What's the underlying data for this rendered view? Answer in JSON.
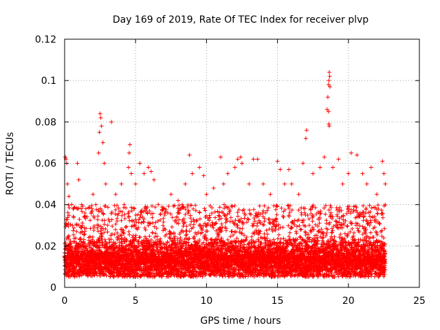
{
  "chart_data": {
    "type": "scatter",
    "title": "Day 169 of 2019, Rate Of TEC Index for receiver plvp",
    "xlabel": "GPS time / hours",
    "ylabel": "ROTI / TECUs",
    "xlim": [
      0,
      25
    ],
    "ylim": [
      0,
      0.12
    ],
    "xticks": [
      0,
      5,
      10,
      15,
      20,
      25
    ],
    "yticks": [
      0,
      0.02,
      0.04,
      0.06,
      0.08,
      0.1,
      0.12
    ],
    "xtick_labels": [
      "0",
      "5",
      "10",
      "15",
      "20",
      "25"
    ],
    "ytick_labels": [
      "0",
      "0.02",
      "0.04",
      "0.06",
      "0.08",
      "0.1",
      "0.12"
    ],
    "grid": true,
    "marker": "+",
    "color": "#ff0000",
    "series": [
      {
        "name": "ROTI",
        "points": [
          [
            0.05,
            0.063
          ],
          [
            0.1,
            0.062
          ],
          [
            0.15,
            0.06
          ],
          [
            0.2,
            0.05
          ],
          [
            0.3,
            0.044
          ],
          [
            0.5,
            0.04
          ],
          [
            0.9,
            0.06
          ],
          [
            1.0,
            0.052
          ],
          [
            1.2,
            0.04
          ],
          [
            1.5,
            0.038
          ],
          [
            2.0,
            0.045
          ],
          [
            2.2,
            0.04
          ],
          [
            2.4,
            0.065
          ],
          [
            2.45,
            0.075
          ],
          [
            2.5,
            0.084
          ],
          [
            2.55,
            0.082
          ],
          [
            2.6,
            0.078
          ],
          [
            2.7,
            0.07
          ],
          [
            2.8,
            0.06
          ],
          [
            2.9,
            0.05
          ],
          [
            3.3,
            0.08
          ],
          [
            3.6,
            0.045
          ],
          [
            4.0,
            0.05
          ],
          [
            4.2,
            0.04
          ],
          [
            4.5,
            0.058
          ],
          [
            4.55,
            0.065
          ],
          [
            4.6,
            0.069
          ],
          [
            4.7,
            0.055
          ],
          [
            5.0,
            0.05
          ],
          [
            5.3,
            0.06
          ],
          [
            5.6,
            0.055
          ],
          [
            5.9,
            0.058
          ],
          [
            6.1,
            0.056
          ],
          [
            6.3,
            0.052
          ],
          [
            6.6,
            0.04
          ],
          [
            7.0,
            0.038
          ],
          [
            7.5,
            0.045
          ],
          [
            8.0,
            0.042
          ],
          [
            8.5,
            0.05
          ],
          [
            8.8,
            0.064
          ],
          [
            9.0,
            0.055
          ],
          [
            9.5,
            0.058
          ],
          [
            9.8,
            0.054
          ],
          [
            10.0,
            0.045
          ],
          [
            10.5,
            0.048
          ],
          [
            11.0,
            0.063
          ],
          [
            11.2,
            0.05
          ],
          [
            11.5,
            0.055
          ],
          [
            12.0,
            0.058
          ],
          [
            12.2,
            0.062
          ],
          [
            12.4,
            0.063
          ],
          [
            12.5,
            0.06
          ],
          [
            13.0,
            0.05
          ],
          [
            13.3,
            0.062
          ],
          [
            13.6,
            0.062
          ],
          [
            14.0,
            0.05
          ],
          [
            14.5,
            0.045
          ],
          [
            15.0,
            0.061
          ],
          [
            15.2,
            0.057
          ],
          [
            15.5,
            0.05
          ],
          [
            15.8,
            0.057
          ],
          [
            16.0,
            0.05
          ],
          [
            16.5,
            0.045
          ],
          [
            16.8,
            0.06
          ],
          [
            17.0,
            0.072
          ],
          [
            17.05,
            0.076
          ],
          [
            17.5,
            0.055
          ],
          [
            18.0,
            0.058
          ],
          [
            18.3,
            0.063
          ],
          [
            18.5,
            0.086
          ],
          [
            18.55,
            0.092
          ],
          [
            18.6,
            0.098
          ],
          [
            18.62,
            0.1
          ],
          [
            18.65,
            0.104
          ],
          [
            18.68,
            0.102
          ],
          [
            18.7,
            0.097
          ],
          [
            18.6,
            0.085
          ],
          [
            18.62,
            0.079
          ],
          [
            18.65,
            0.078
          ],
          [
            18.9,
            0.058
          ],
          [
            19.3,
            0.062
          ],
          [
            19.6,
            0.05
          ],
          [
            20.0,
            0.055
          ],
          [
            20.2,
            0.065
          ],
          [
            20.6,
            0.064
          ],
          [
            21.0,
            0.055
          ],
          [
            21.3,
            0.05
          ],
          [
            21.6,
            0.058
          ],
          [
            22.0,
            0.045
          ],
          [
            22.4,
            0.061
          ],
          [
            22.5,
            0.055
          ],
          [
            22.6,
            0.05
          ]
        ]
      }
    ],
    "dense_band": {
      "x_range": [
        0,
        22.6
      ],
      "typical_min": 0.005,
      "typical_max": 0.035,
      "approx_point_count": 7000
    }
  }
}
